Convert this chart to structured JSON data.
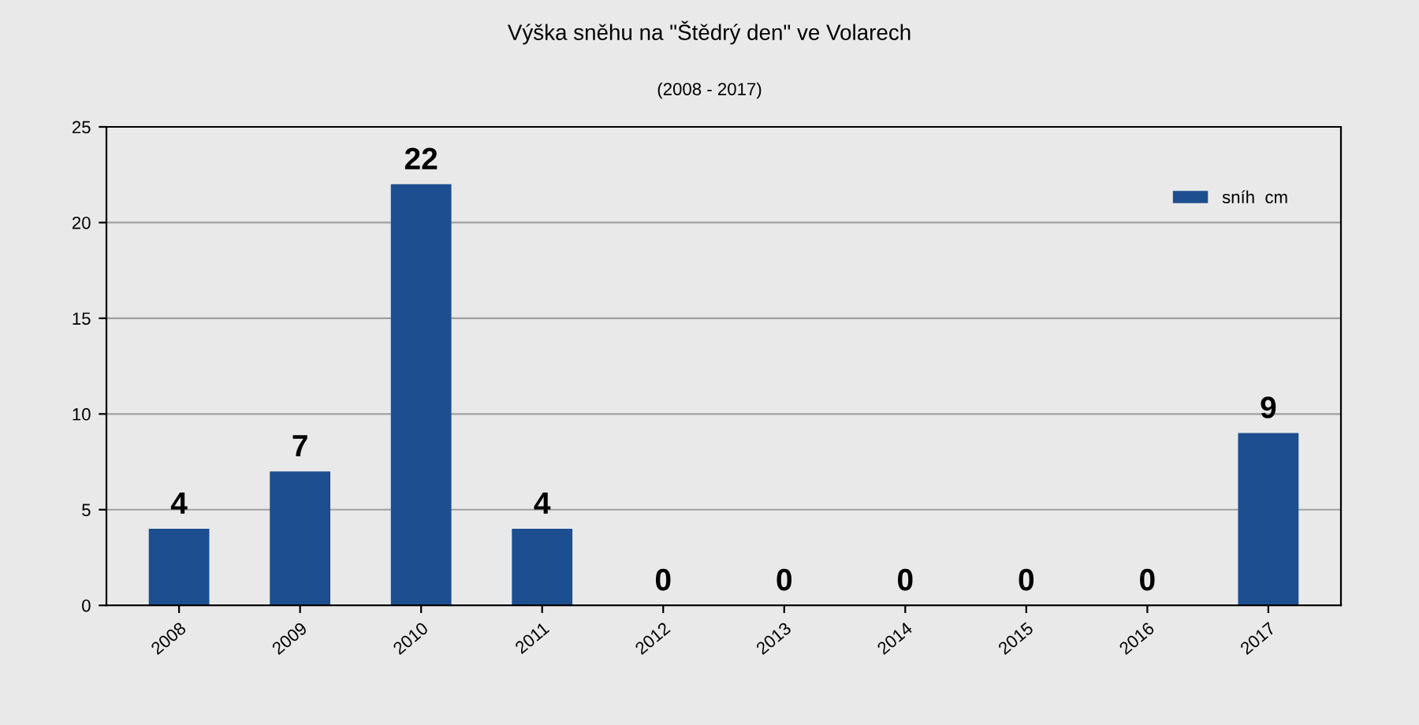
{
  "chart_data": {
    "type": "bar",
    "title": "Výška sněhu na \"Štědrý den\" ve Volarech",
    "subtitle": "(2008 - 2017)",
    "categories": [
      "2008",
      "2009",
      "2010",
      "2011",
      "2012",
      "2013",
      "2014",
      "2015",
      "2016",
      "2017"
    ],
    "series": [
      {
        "name": "sníh  cm",
        "color": "#1d4e8f",
        "values": [
          4,
          7,
          22,
          4,
          0,
          0,
          0,
          0,
          0,
          9
        ]
      }
    ],
    "ylim": [
      0,
      25
    ],
    "yticks": [
      0,
      5,
      10,
      15,
      20,
      25
    ],
    "grid": "y",
    "legend": "top right",
    "data_labels": true
  }
}
